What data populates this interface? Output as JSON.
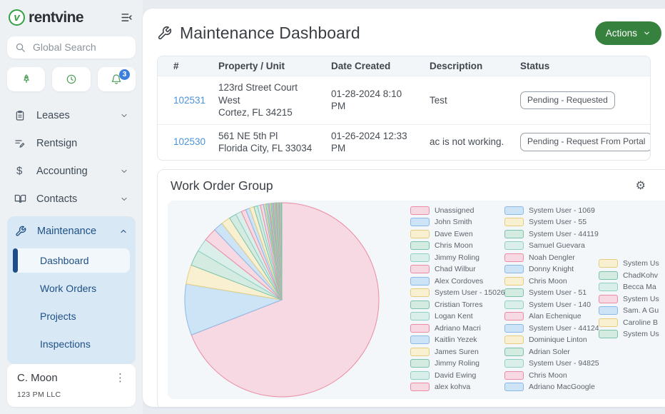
{
  "sidebar": {
    "brand": "rentvine",
    "logo_letter": "v",
    "search_placeholder": "Global Search",
    "notification_count": "3",
    "nav": [
      {
        "label": "Leases",
        "icon": "clipboard-icon",
        "chevron": "down"
      },
      {
        "label": "Rentsign",
        "icon": "signature-icon"
      },
      {
        "label": "Accounting",
        "icon": "dollar-icon",
        "chevron": "down"
      },
      {
        "label": "Contacts",
        "icon": "book-icon",
        "chevron": "down"
      }
    ],
    "maintenance": {
      "label": "Maintenance",
      "items": [
        "Dashboard",
        "Work Orders",
        "Projects",
        "Inspections"
      ],
      "active_item": "Dashboard"
    },
    "user": {
      "name": "C. Moon",
      "company": "123 PM LLC"
    }
  },
  "header": {
    "title": "Maintenance Dashboard",
    "actions_label": "Actions"
  },
  "table": {
    "columns": [
      "#",
      "Property / Unit",
      "Date Created",
      "Description",
      "Status"
    ],
    "rows": [
      {
        "id": "102531",
        "property_lines": [
          "123rd Street Court West",
          "Cortez, FL 34215"
        ],
        "date": "01-28-2024 8:10 PM",
        "description": "Test",
        "status": "Pending - Requested"
      },
      {
        "id": "102530",
        "property_lines": [
          "561 NE 5th Pl",
          "Florida City, FL 33034"
        ],
        "date": "01-26-2024 12:33 PM",
        "description": "ac is not working.",
        "status": "Pending - Request From Portal"
      }
    ]
  },
  "work_order_group": {
    "title": "Work Order Group"
  },
  "colors": {
    "brand_green": "#35a044",
    "actions_green": "#37813f",
    "badge_blue": "#3c7ede",
    "link_blue": "#4b93d8",
    "nav_navy": "#1d5086"
  },
  "chart_data": {
    "type": "pie",
    "title": "Work Order Group",
    "legend_position": "right",
    "legend_columns": [
      16,
      16,
      7
    ],
    "palette": {
      "pink": {
        "fill": "#f6d9e2",
        "stroke": "#ec8ba3"
      },
      "blue": {
        "fill": "#cde3f6",
        "stroke": "#8cb9e6"
      },
      "yellow": {
        "fill": "#f9f0d2",
        "stroke": "#e4cd7d"
      },
      "teal1": {
        "fill": "#d3ebe1",
        "stroke": "#7ac2ab"
      },
      "teal2": {
        "fill": "#daeeea",
        "stroke": "#90d0c3"
      }
    },
    "series": [
      {
        "name": "Unassigned",
        "value": 69,
        "color": "pink"
      },
      {
        "name": "John Smith",
        "value": 8.5,
        "color": "blue"
      },
      {
        "name": "Dave Ewen",
        "value": 3.2,
        "color": "yellow"
      },
      {
        "name": "Chris Moon",
        "value": 2.6,
        "color": "teal1"
      },
      {
        "name": "Jimmy Roling",
        "value": 2.2,
        "color": "teal2"
      },
      {
        "name": "Chad Wilbur",
        "value": 2.2,
        "color": "pink"
      },
      {
        "name": "Alex Cordoves",
        "value": 1.6,
        "color": "blue"
      },
      {
        "name": "System User - 15026",
        "value": 1.5,
        "color": "yellow"
      },
      {
        "name": "Cristian Torres",
        "value": 1.2,
        "color": "teal1"
      },
      {
        "name": "Logan Kent",
        "value": 1.0,
        "color": "teal2"
      },
      {
        "name": "Adriano Macri",
        "value": 0.8,
        "color": "pink"
      },
      {
        "name": "Kaitlin Yezek",
        "value": 0.7,
        "color": "blue"
      },
      {
        "name": "James Suren",
        "value": 0.7,
        "color": "yellow"
      },
      {
        "name": "Jimmy Roling",
        "value": 0.6,
        "color": "teal1"
      },
      {
        "name": "David Ewing",
        "value": 0.5,
        "color": "teal2"
      },
      {
        "name": "alex kohva",
        "value": 0.5,
        "color": "pink"
      },
      {
        "name": "System User - 1069",
        "value": 0.2,
        "color": "blue"
      },
      {
        "name": "System User - 55",
        "value": 0.2,
        "color": "yellow"
      },
      {
        "name": "System User - 44119",
        "value": 0.2,
        "color": "teal1"
      },
      {
        "name": "Samuel Guevara",
        "value": 0.2,
        "color": "teal2"
      },
      {
        "name": "Noah Dengler",
        "value": 0.15,
        "color": "pink"
      },
      {
        "name": "Donny Knight",
        "value": 0.15,
        "color": "blue"
      },
      {
        "name": "Chris Moon",
        "value": 0.15,
        "color": "yellow"
      },
      {
        "name": "System User - 51",
        "value": 0.15,
        "color": "teal1"
      },
      {
        "name": "System User - 140",
        "value": 0.15,
        "color": "teal2"
      },
      {
        "name": "Alan Echenique",
        "value": 0.12,
        "color": "pink"
      },
      {
        "name": "System User - 44124",
        "value": 0.12,
        "color": "blue"
      },
      {
        "name": "Dominique Linton",
        "value": 0.12,
        "color": "yellow"
      },
      {
        "name": "Adrian Soler",
        "value": 0.12,
        "color": "teal1"
      },
      {
        "name": "System User - 94825",
        "value": 0.12,
        "color": "teal2"
      },
      {
        "name": "Chris Moon",
        "value": 0.1,
        "color": "pink"
      },
      {
        "name": "Adriano MacGoogle",
        "value": 0.1,
        "color": "blue"
      },
      {
        "name": "System Us",
        "value": 0.1,
        "color": "yellow"
      },
      {
        "name": "ChadKohv",
        "value": 0.1,
        "color": "teal1"
      },
      {
        "name": "Becca Ma",
        "value": 0.1,
        "color": "teal2"
      },
      {
        "name": "System Us",
        "value": 0.1,
        "color": "pink"
      },
      {
        "name": "Sam. A Gu",
        "value": 0.1,
        "color": "blue"
      },
      {
        "name": "Caroline B",
        "value": 0.1,
        "color": "yellow"
      },
      {
        "name": "System Us",
        "value": 0.1,
        "color": "teal1"
      }
    ]
  }
}
